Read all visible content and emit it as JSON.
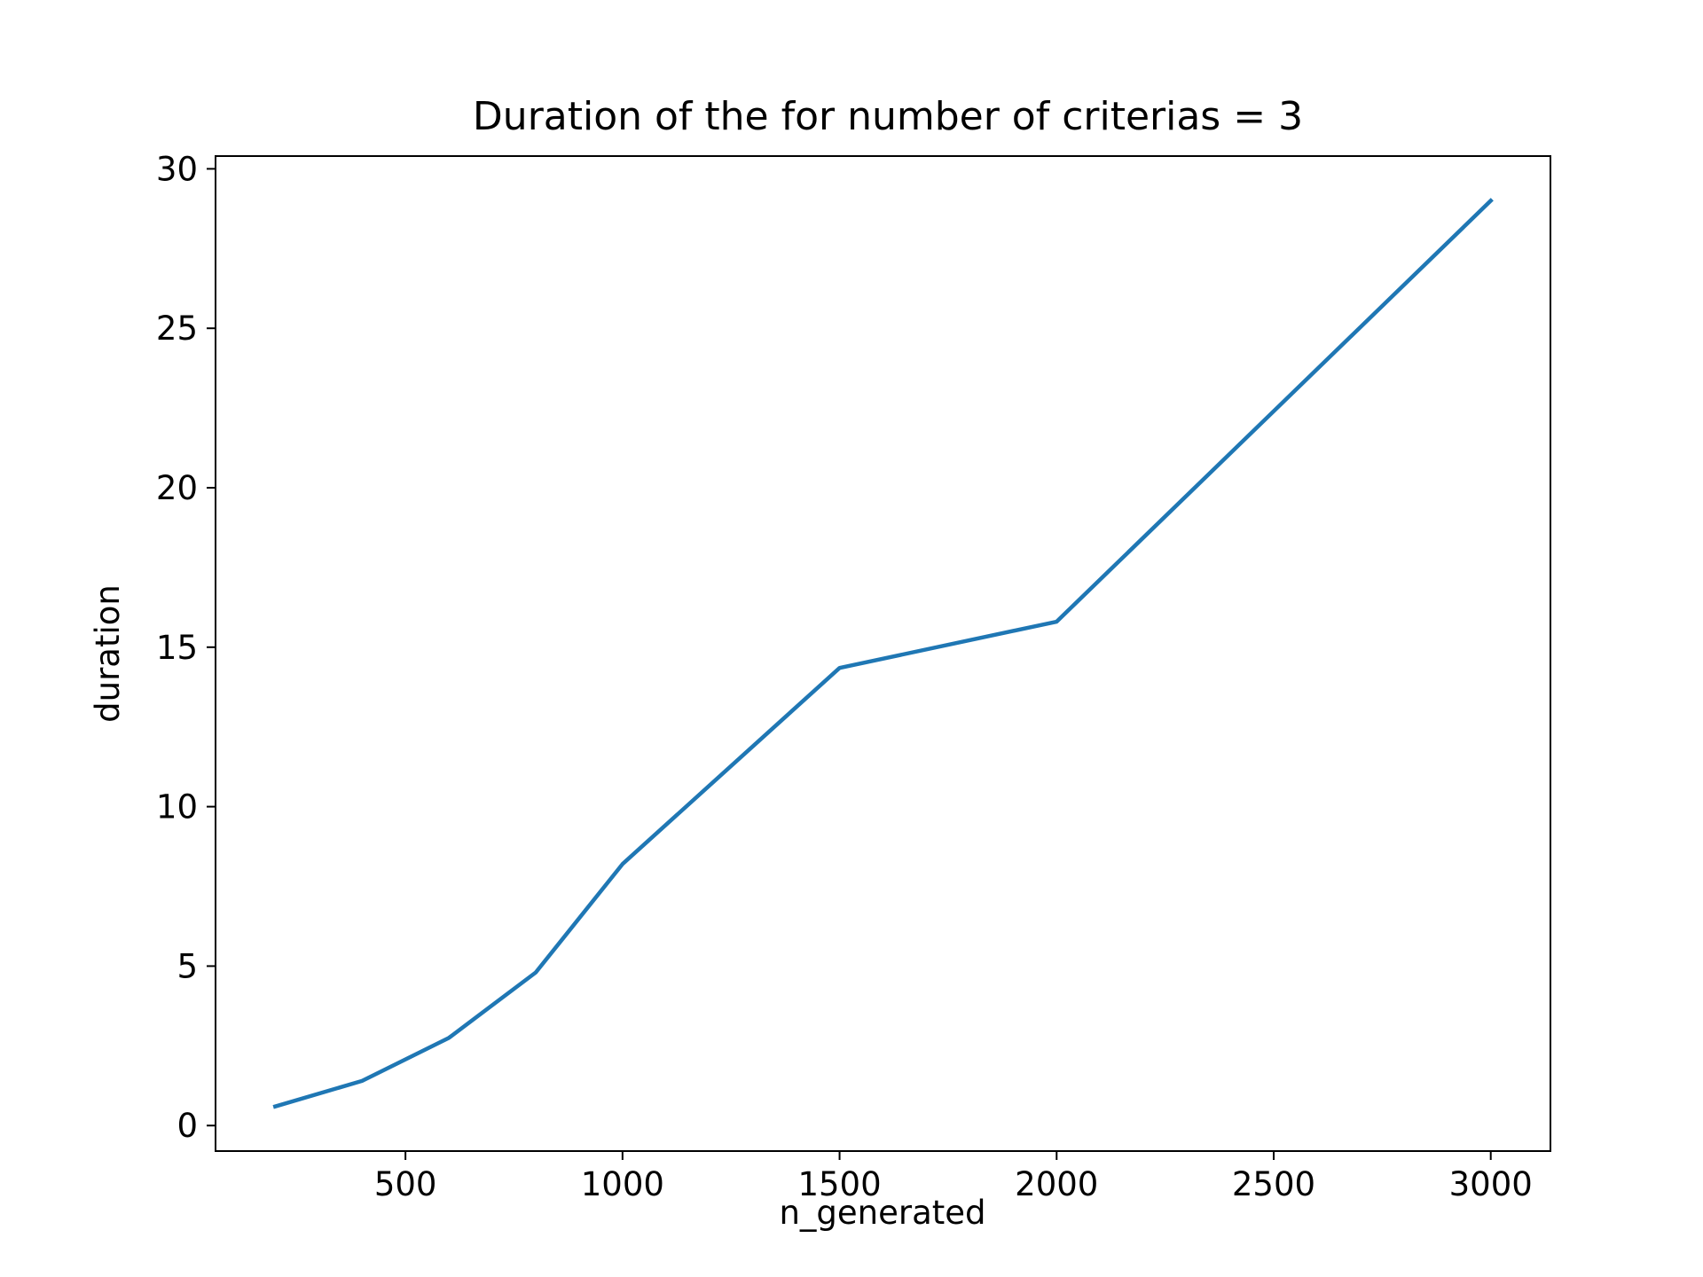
{
  "chart_data": {
    "type": "line",
    "title": "Duration of the for number of criterias = 3",
    "xlabel": "n_generated",
    "ylabel": "duration",
    "xlim": [
      62.5,
      3137.5
    ],
    "ylim": [
      -0.8,
      30.4
    ],
    "xticks": [
      500,
      1000,
      1500,
      2000,
      2500,
      3000
    ],
    "xtick_labels": [
      "500",
      "1000",
      "1500",
      "2000",
      "2500",
      "3000"
    ],
    "yticks": [
      0,
      5,
      10,
      15,
      20,
      25,
      30
    ],
    "ytick_labels": [
      "0",
      "5",
      "10",
      "15",
      "20",
      "25",
      "30"
    ],
    "grid": false,
    "series": [
      {
        "name": "duration",
        "color": "#1f77b4",
        "x": [
          200,
          400,
          600,
          800,
          1000,
          1500,
          2000,
          3000
        ],
        "y": [
          0.6,
          1.4,
          2.75,
          4.8,
          8.2,
          14.35,
          15.8,
          29.0
        ]
      }
    ]
  }
}
